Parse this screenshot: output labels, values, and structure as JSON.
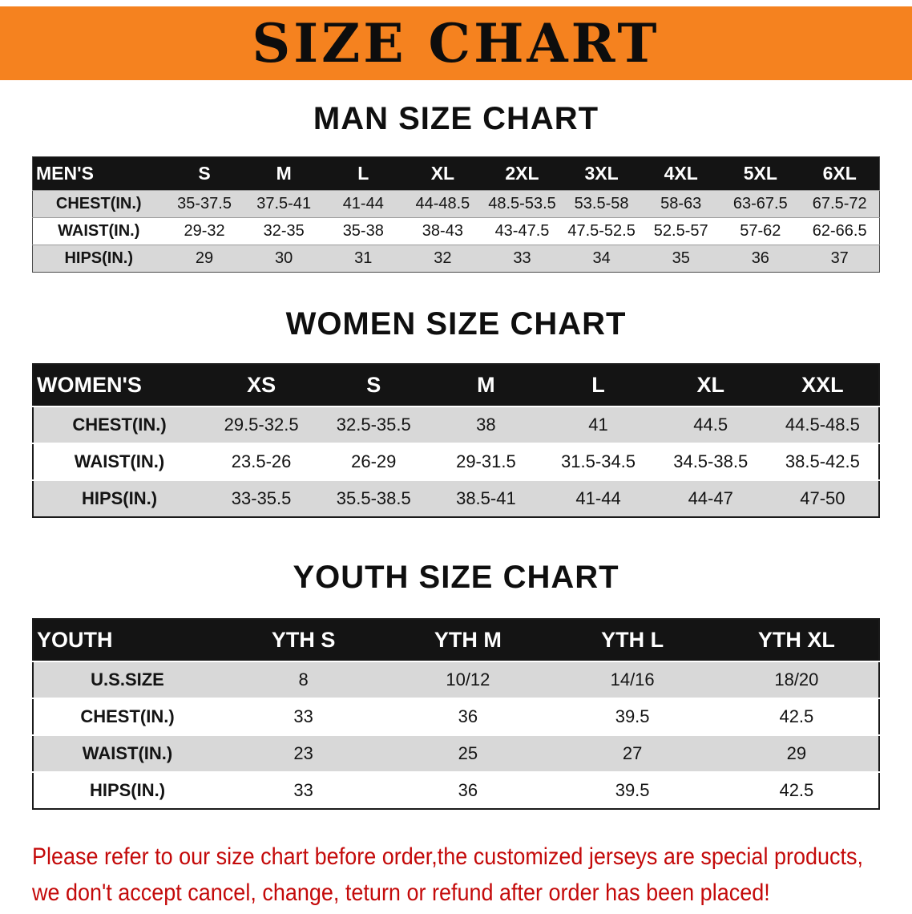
{
  "banner": {
    "title": "SIZE CHART"
  },
  "sections": [
    {
      "heading": "MAN SIZE CHART",
      "table": {
        "header": [
          "MEN'S",
          "S",
          "M",
          "L",
          "XL",
          "2XL",
          "3XL",
          "4XL",
          "5XL",
          "6XL"
        ],
        "rows": [
          {
            "label": "CHEST(IN.)",
            "values": [
              "35-37.5",
              "37.5-41",
              "41-44",
              "44-48.5",
              "48.5-53.5",
              "53.5-58",
              "58-63",
              "63-67.5",
              "67.5-72"
            ]
          },
          {
            "label": "WAIST(IN.)",
            "values": [
              "29-32",
              "32-35",
              "35-38",
              "38-43",
              "43-47.5",
              "47.5-52.5",
              "52.5-57",
              "57-62",
              "62-66.5"
            ]
          },
          {
            "label": "HIPS(IN.)",
            "values": [
              "29",
              "30",
              "31",
              "32",
              "33",
              "34",
              "35",
              "36",
              "37"
            ]
          }
        ]
      }
    },
    {
      "heading": "WOMEN SIZE CHART",
      "table": {
        "header": [
          "WOMEN'S",
          "XS",
          "S",
          "M",
          "L",
          "XL",
          "XXL"
        ],
        "rows": [
          {
            "label": "CHEST(IN.)",
            "values": [
              "29.5-32.5",
              "32.5-35.5",
              "38",
              "41",
              "44.5",
              "44.5-48.5"
            ]
          },
          {
            "label": "WAIST(IN.)",
            "values": [
              "23.5-26",
              "26-29",
              "29-31.5",
              "31.5-34.5",
              "34.5-38.5",
              "38.5-42.5"
            ]
          },
          {
            "label": "HIPS(IN.)",
            "values": [
              "33-35.5",
              "35.5-38.5",
              "38.5-41",
              "41-44",
              "44-47",
              "47-50"
            ]
          }
        ]
      }
    },
    {
      "heading": "YOUTH SIZE CHART",
      "table": {
        "header": [
          "YOUTH",
          "YTH S",
          "YTH M",
          "YTH L",
          "YTH XL"
        ],
        "rows": [
          {
            "label": "U.S.SIZE",
            "values": [
              "8",
              "10/12",
              "14/16",
              "18/20"
            ]
          },
          {
            "label": "CHEST(IN.)",
            "values": [
              "33",
              "36",
              "39.5",
              "42.5"
            ]
          },
          {
            "label": "WAIST(IN.)",
            "values": [
              "23",
              "25",
              "27",
              "29"
            ]
          },
          {
            "label": "HIPS(IN.)",
            "values": [
              "33",
              "36",
              "39.5",
              "42.5"
            ]
          }
        ]
      }
    }
  ],
  "footer": {
    "line1": "Please refer to our size chart before order,the customized jerseys are special products,",
    "line2": "we don't accept cancel, change, teturn or refund after order has been placed!"
  },
  "colors": {
    "banner_orange": "#F5821F",
    "header_black": "#141414",
    "stripe_gray": "#D8D8D8",
    "notice_red": "#C40A0A"
  }
}
